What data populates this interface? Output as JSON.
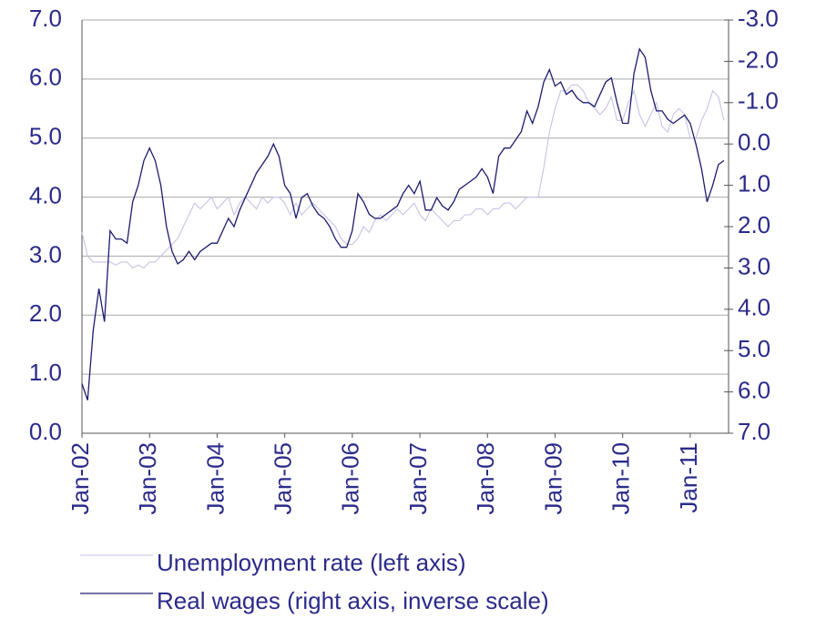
{
  "chart_data": {
    "type": "line",
    "categories": [
      "Jan-02",
      null,
      null,
      null,
      null,
      null,
      null,
      null,
      null,
      null,
      null,
      null,
      "Jan-03",
      null,
      null,
      null,
      null,
      null,
      null,
      null,
      null,
      null,
      null,
      null,
      "Jan-04",
      null,
      null,
      null,
      null,
      null,
      null,
      null,
      null,
      null,
      null,
      null,
      "Jan-05",
      null,
      null,
      null,
      null,
      null,
      null,
      null,
      null,
      null,
      null,
      null,
      "Jan-06",
      null,
      null,
      null,
      null,
      null,
      null,
      null,
      null,
      null,
      null,
      null,
      "Jan-07",
      null,
      null,
      null,
      null,
      null,
      null,
      null,
      null,
      null,
      null,
      null,
      "Jan-08",
      null,
      null,
      null,
      null,
      null,
      null,
      null,
      null,
      null,
      null,
      null,
      "Jan-09",
      null,
      null,
      null,
      null,
      null,
      null,
      null,
      null,
      null,
      null,
      null,
      "Jan-10",
      null,
      null,
      null,
      null,
      null,
      null,
      null,
      null,
      null,
      null,
      null,
      "Jan-11",
      null,
      null,
      null,
      null,
      null,
      null
    ],
    "series": [
      {
        "name": "Unemployment rate (left axis)",
        "color": "#c4c4e4",
        "axis": "y",
        "values": [
          3.4,
          3.0,
          2.9,
          2.9,
          2.9,
          2.9,
          2.85,
          2.9,
          2.9,
          2.8,
          2.85,
          2.8,
          2.9,
          2.9,
          3.0,
          3.1,
          3.2,
          3.3,
          3.5,
          3.7,
          3.9,
          3.8,
          3.9,
          4.0,
          3.8,
          3.9,
          4.0,
          3.7,
          3.9,
          4.0,
          3.9,
          3.8,
          4.0,
          3.9,
          4.0,
          4.0,
          3.9,
          3.7,
          3.9,
          3.7,
          3.8,
          3.9,
          3.8,
          3.7,
          3.6,
          3.5,
          3.3,
          3.2,
          3.2,
          3.3,
          3.5,
          3.4,
          3.6,
          3.7,
          3.6,
          3.7,
          3.8,
          3.7,
          3.8,
          3.9,
          3.7,
          3.6,
          3.8,
          3.7,
          3.6,
          3.5,
          3.6,
          3.6,
          3.7,
          3.7,
          3.8,
          3.8,
          3.7,
          3.8,
          3.8,
          3.9,
          3.9,
          3.8,
          3.9,
          4.0,
          4.0,
          4.0,
          4.5,
          5.1,
          5.5,
          5.8,
          5.8,
          5.9,
          5.9,
          5.8,
          5.6,
          5.5,
          5.4,
          5.5,
          5.7,
          5.3,
          5.3,
          5.6,
          5.8,
          5.4,
          5.2,
          5.4,
          5.6,
          5.2,
          5.1,
          5.4,
          5.5,
          5.4,
          5.0,
          5.0,
          5.3,
          5.5,
          5.8,
          5.7,
          5.3
        ]
      },
      {
        "name": "Real wages (right axis, inverse scale)",
        "color": "#1c1c70",
        "axis": "y2",
        "values": [
          5.8,
          6.2,
          4.5,
          3.5,
          4.3,
          2.1,
          2.3,
          2.3,
          2.4,
          1.4,
          1.0,
          0.4,
          0.1,
          0.4,
          1.0,
          2.0,
          2.6,
          2.9,
          2.8,
          2.6,
          2.8,
          2.6,
          2.5,
          2.4,
          2.4,
          2.1,
          1.8,
          2.0,
          1.6,
          1.3,
          1.0,
          0.7,
          0.5,
          0.3,
          0.0,
          0.3,
          1.0,
          1.2,
          1.8,
          1.3,
          1.2,
          1.5,
          1.7,
          1.8,
          2.0,
          2.3,
          2.5,
          2.5,
          2.1,
          1.2,
          1.4,
          1.7,
          1.8,
          1.8,
          1.7,
          1.6,
          1.5,
          1.2,
          1.0,
          1.2,
          0.9,
          1.6,
          1.6,
          1.3,
          1.5,
          1.6,
          1.4,
          1.1,
          1.0,
          0.9,
          0.8,
          0.6,
          0.8,
          1.2,
          0.3,
          0.1,
          0.1,
          -0.1,
          -0.3,
          -0.8,
          -0.5,
          -0.9,
          -1.5,
          -1.8,
          -1.4,
          -1.5,
          -1.2,
          -1.3,
          -1.1,
          -1.0,
          -1.0,
          -0.9,
          -1.2,
          -1.5,
          -1.6,
          -1.0,
          -0.5,
          -0.5,
          -1.7,
          -2.3,
          -2.1,
          -1.3,
          -0.8,
          -0.8,
          -0.6,
          -0.5,
          -0.6,
          -0.7,
          -0.5,
          0.0,
          0.6,
          1.4,
          1.0,
          0.5,
          0.4
        ]
      }
    ],
    "ylim": [
      0,
      7
    ],
    "yticks": [
      {
        "value": 0,
        "label": "0.0"
      },
      {
        "value": 1,
        "label": "1.0"
      },
      {
        "value": 2,
        "label": "2.0"
      },
      {
        "value": 3,
        "label": "3.0"
      },
      {
        "value": 4,
        "label": "4.0"
      },
      {
        "value": 5,
        "label": "5.0"
      },
      {
        "value": 6,
        "label": "6.0"
      },
      {
        "value": 7,
        "label": "7.0"
      }
    ],
    "y2lim": [
      7,
      -3
    ],
    "y2ticks": [
      {
        "value": -3,
        "label": "-3.0"
      },
      {
        "value": -2,
        "label": "-2.0"
      },
      {
        "value": -1,
        "label": "-1.0"
      },
      {
        "value": 0,
        "label": "0.0"
      },
      {
        "value": 1,
        "label": "1.0"
      },
      {
        "value": 2,
        "label": "2.0"
      },
      {
        "value": 3,
        "label": "3.0"
      },
      {
        "value": 4,
        "label": "4.0"
      },
      {
        "value": 5,
        "label": "5.0"
      },
      {
        "value": 6,
        "label": "6.0"
      },
      {
        "value": 7,
        "label": "7.0"
      }
    ],
    "grid": true
  }
}
